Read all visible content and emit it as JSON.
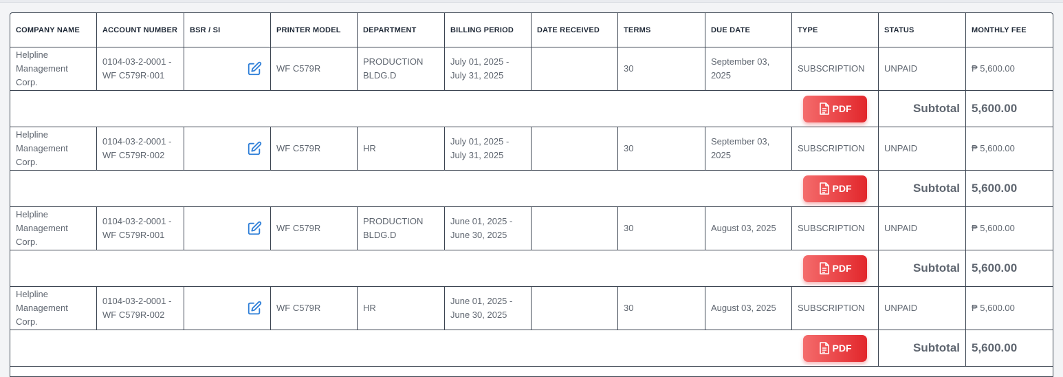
{
  "headers": {
    "company_name": "COMPANY NAME",
    "account_number": "ACCOUNT NUMBER",
    "bsr_si": "BSR / SI",
    "printer_model": "PRINTER MODEL",
    "department": "DEPARTMENT",
    "billing_period": "BILLING PERIOD",
    "date_received": "DATE RECEIVED",
    "terms": "TERMS",
    "due_date": "DUE DATE",
    "type": "TYPE",
    "status": "STATUS",
    "monthly_fee": "MONTHLY FEE"
  },
  "rows": [
    {
      "company": "Helpline Management Corp.",
      "account": "0104-03-2-0001 -WF C579R-001",
      "printer": "WF C579R",
      "department": "PRODUCTION BLDG.D",
      "billing": "July 01, 2025 - July 31, 2025",
      "received": "",
      "terms": "30",
      "due": "September 03, 2025",
      "type": "SUBSCRIPTION",
      "status": "UNPAID",
      "fee": "₱ 5,600.00",
      "subtotal_label": "Subtotal",
      "subtotal": "5,600.00",
      "pdf_label": "PDF"
    },
    {
      "company": "Helpline Management Corp.",
      "account": "0104-03-2-0001 -WF C579R-002",
      "printer": "WF C579R",
      "department": "HR",
      "billing": "July 01, 2025 - July 31, 2025",
      "received": "",
      "terms": "30",
      "due": "September 03, 2025",
      "type": "SUBSCRIPTION",
      "status": "UNPAID",
      "fee": "₱ 5,600.00",
      "subtotal_label": "Subtotal",
      "subtotal": "5,600.00",
      "pdf_label": "PDF"
    },
    {
      "company": "Helpline Management Corp.",
      "account": "0104-03-2-0001 -WF C579R-001",
      "printer": "WF C579R",
      "department": "PRODUCTION BLDG.D",
      "billing": "June 01, 2025 - June 30, 2025",
      "received": "",
      "terms": "30",
      "due": "August 03, 2025",
      "type": "SUBSCRIPTION",
      "status": "UNPAID",
      "fee": "₱ 5,600.00",
      "subtotal_label": "Subtotal",
      "subtotal": "5,600.00",
      "pdf_label": "PDF"
    },
    {
      "company": "Helpline Management Corp.",
      "account": "0104-03-2-0001 -WF C579R-002",
      "printer": "WF C579R",
      "department": "HR",
      "billing": "June 01, 2025 - June 30, 2025",
      "received": "",
      "terms": "30",
      "due": "August 03, 2025",
      "type": "SUBSCRIPTION",
      "status": "UNPAID",
      "fee": "₱ 5,600.00",
      "subtotal_label": "Subtotal",
      "subtotal": "5,600.00",
      "pdf_label": "PDF"
    }
  ],
  "icons": {
    "edit": "edit-icon",
    "pdf": "file-icon"
  },
  "colors": {
    "pdf_start": "#f46c6c",
    "pdf_end": "#e2262b",
    "edit_icon": "#2f7fd8",
    "border": "#3b4451"
  }
}
